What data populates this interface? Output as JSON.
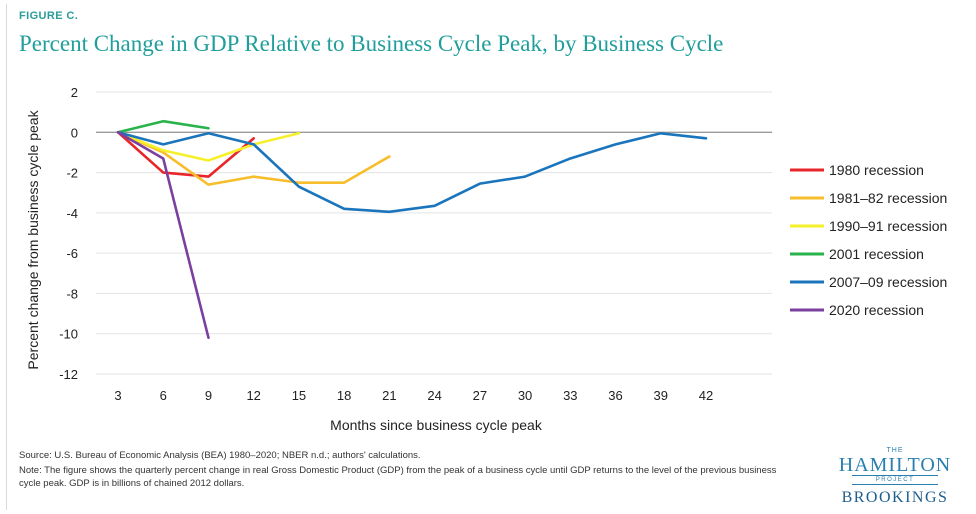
{
  "figure_label": "FIGURE C.",
  "source": "Source: U.S. Bureau of Economic Analysis (BEA) 1980–2020; NBER n.d.; authors' calculations.",
  "note": "Note: The figure shows the quarterly percent change in real Gross Domestic Product (GDP) from the peak of a business cycle until GDP returns to the level of the previous business cycle peak. GDP is in billions of chained 2012 dollars.",
  "logo": {
    "the": "THE",
    "hamilton": "HAMILTON",
    "project": "PROJECT",
    "brookings": "BROOKINGS"
  },
  "chart_data": {
    "type": "line",
    "title": "Percent Change in GDP Relative to Business Cycle Peak, by Business Cycle",
    "xlabel": "Months since business cycle peak",
    "ylabel": "Percent change from business cycle peak",
    "x_ticks": [
      3,
      6,
      9,
      12,
      15,
      18,
      21,
      24,
      27,
      30,
      33,
      36,
      39,
      42
    ],
    "y_ticks": [
      2,
      0,
      -2,
      -4,
      -6,
      -8,
      -10,
      -12
    ],
    "xlim": [
      3,
      42
    ],
    "ylim": [
      -12,
      2
    ],
    "grid": "horizontal",
    "legend_position": "right",
    "zero_line_color": "#9a9a9a",
    "series": [
      {
        "name": "1980 recession",
        "color": "#e8262a",
        "x": [
          3,
          6,
          9,
          12
        ],
        "y": [
          0,
          -2.0,
          -2.2,
          -0.3
        ]
      },
      {
        "name": "1981–82 recession",
        "color": "#f7bd2b",
        "x": [
          3,
          6,
          9,
          12,
          15,
          18,
          21
        ],
        "y": [
          0,
          -1.0,
          -2.6,
          -2.2,
          -2.5,
          -2.5,
          -1.2
        ]
      },
      {
        "name": "1990–91 recession",
        "color": "#f6f02a",
        "x": [
          3,
          6,
          9,
          12,
          15
        ],
        "y": [
          0,
          -0.9,
          -1.4,
          -0.6,
          -0.05
        ]
      },
      {
        "name": "2001 recession",
        "color": "#28b34b",
        "x": [
          3,
          6,
          9
        ],
        "y": [
          0,
          0.55,
          0.2
        ]
      },
      {
        "name": "2007–09 recession",
        "color": "#1b75bc",
        "x": [
          3,
          6,
          9,
          12,
          15,
          18,
          21,
          24,
          27,
          30,
          33,
          36,
          39,
          42
        ],
        "y": [
          0,
          -0.6,
          -0.05,
          -0.6,
          -2.7,
          -3.8,
          -3.95,
          -3.65,
          -2.55,
          -2.2,
          -1.3,
          -0.6,
          -0.05,
          -0.3
        ]
      },
      {
        "name": "2020 recession",
        "color": "#7b3fa0",
        "x": [
          3,
          6,
          9
        ],
        "y": [
          0,
          -1.3,
          -10.2
        ]
      }
    ]
  }
}
